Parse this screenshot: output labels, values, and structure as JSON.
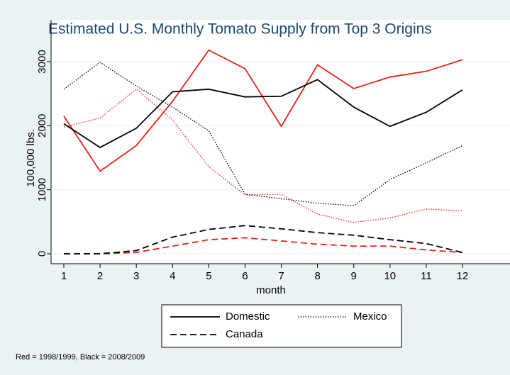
{
  "chart_data": {
    "type": "line",
    "title": "Estimated U.S. Monthly Tomato Supply from Top 3 Origins",
    "x_label": "month",
    "y_label": "100,000 lbs.",
    "note": "Red = 1998/1999, Black = 2008/2009",
    "x": [
      1,
      2,
      3,
      4,
      5,
      6,
      7,
      8,
      9,
      10,
      11,
      12
    ],
    "xlim": [
      1,
      12
    ],
    "xticks": [
      1,
      2,
      3,
      4,
      5,
      6,
      7,
      8,
      9,
      10,
      11,
      12
    ],
    "ylim": [
      0,
      3000
    ],
    "yticks": [
      0,
      1000,
      2000,
      3000
    ],
    "grid": true,
    "series": [
      {
        "name": "Domestic",
        "dash": "solid",
        "lines": [
          {
            "color": "#e8211a",
            "values": [
              2150,
              1290,
              1690,
              2380,
              3180,
              2890,
              1990,
              2950,
              2580,
              2760,
              2850,
              3030
            ]
          },
          {
            "color": "#000000",
            "values": [
              2030,
              1660,
              1960,
              2530,
              2570,
              2450,
              2460,
              2720,
              2290,
              1990,
              2210,
              2560
            ]
          }
        ]
      },
      {
        "name": "Mexico",
        "dash": "dotted",
        "lines": [
          {
            "color": "#e8211a",
            "values": [
              1980,
              2120,
              2570,
              2090,
              1360,
              920,
              930,
              620,
              490,
              560,
              700,
              670
            ]
          },
          {
            "color": "#000000",
            "values": [
              2570,
              2990,
              2620,
              2290,
              1920,
              930,
              860,
              790,
              750,
              1160,
              1420,
              1690
            ]
          }
        ]
      },
      {
        "name": "Canada",
        "dash": "dashed",
        "lines": [
          {
            "color": "#e8211a",
            "values": [
              0,
              0,
              20,
              120,
              220,
              250,
              200,
              150,
              120,
              120,
              60,
              20
            ]
          },
          {
            "color": "#000000",
            "values": [
              0,
              0,
              50,
              260,
              380,
              440,
              390,
              330,
              290,
              220,
              160,
              20
            ]
          }
        ]
      }
    ]
  }
}
